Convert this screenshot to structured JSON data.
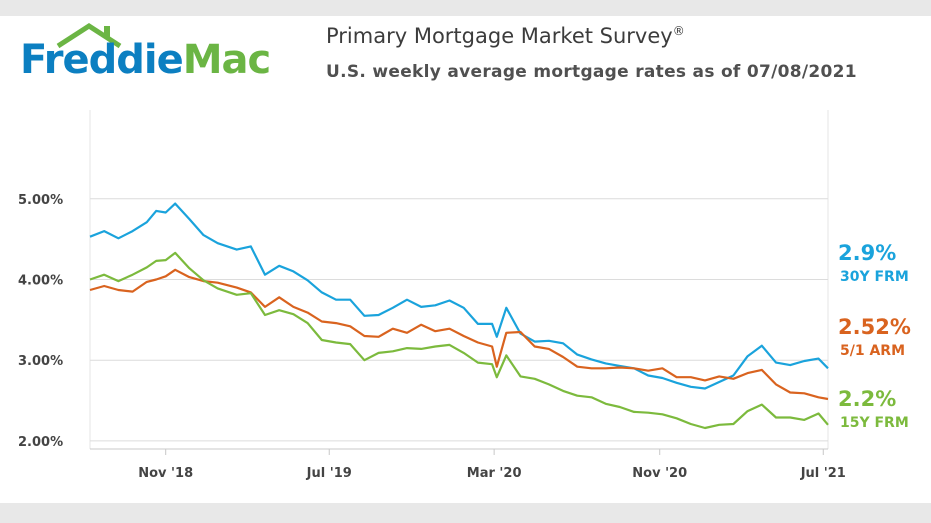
{
  "logo": {
    "word1": "Freddie",
    "word2": "Mac"
  },
  "header": {
    "title": "Primary Mortgage Market Survey",
    "title_mark": "®",
    "subtitle": "U.S. weekly average mortgage rates as of 07/08/2021"
  },
  "colors": {
    "brand_blue": "#0c7fc1",
    "brand_green": "#6bb544",
    "frm30": "#1aa3dc",
    "arm51": "#d9631f",
    "frm15": "#7cba3d",
    "grid": "#dcdcdc"
  },
  "chart_data": {
    "type": "line",
    "title": "Primary Mortgage Market Survey",
    "subtitle": "U.S. weekly average mortgage rates as of 07/08/2021",
    "x_range": [
      "2018-07-12",
      "2021-07-08"
    ],
    "x_ticks": [
      {
        "date": "2018-11-01",
        "label": "Nov '18"
      },
      {
        "date": "2019-07-01",
        "label": "Jul '19"
      },
      {
        "date": "2020-03-01",
        "label": "Mar '20"
      },
      {
        "date": "2020-11-01",
        "label": "Nov '20"
      },
      {
        "date": "2021-07-01",
        "label": "Jul '21"
      }
    ],
    "y_ticks": [
      {
        "value": 5.0,
        "label": "5.00%"
      },
      {
        "value": 4.0,
        "label": "4.00%"
      },
      {
        "value": 3.0,
        "label": "3.00%"
      },
      {
        "value": 2.0,
        "label": "2.00%"
      }
    ],
    "ylim": [
      1.9,
      6.1
    ],
    "grid": true,
    "series": [
      {
        "name": "30Y FRM",
        "end_label": "2.9%",
        "color": "#1aa3dc",
        "points": [
          [
            "2018-07-12",
            4.53
          ],
          [
            "2018-08-02",
            4.6
          ],
          [
            "2018-08-23",
            4.51
          ],
          [
            "2018-09-13",
            4.6
          ],
          [
            "2018-10-04",
            4.71
          ],
          [
            "2018-10-18",
            4.85
          ],
          [
            "2018-11-01",
            4.83
          ],
          [
            "2018-11-15",
            4.94
          ],
          [
            "2018-12-06",
            4.75
          ],
          [
            "2018-12-27",
            4.55
          ],
          [
            "2019-01-17",
            4.45
          ],
          [
            "2019-02-14",
            4.37
          ],
          [
            "2019-03-07",
            4.41
          ],
          [
            "2019-03-28",
            4.06
          ],
          [
            "2019-04-18",
            4.17
          ],
          [
            "2019-05-09",
            4.1
          ],
          [
            "2019-05-30",
            3.99
          ],
          [
            "2019-06-20",
            3.84
          ],
          [
            "2019-07-11",
            3.75
          ],
          [
            "2019-08-01",
            3.75
          ],
          [
            "2019-08-22",
            3.55
          ],
          [
            "2019-09-12",
            3.56
          ],
          [
            "2019-10-03",
            3.65
          ],
          [
            "2019-10-24",
            3.75
          ],
          [
            "2019-11-14",
            3.66
          ],
          [
            "2019-12-05",
            3.68
          ],
          [
            "2019-12-26",
            3.74
          ],
          [
            "2020-01-16",
            3.65
          ],
          [
            "2020-02-06",
            3.45
          ],
          [
            "2020-02-27",
            3.45
          ],
          [
            "2020-03-05",
            3.29
          ],
          [
            "2020-03-19",
            3.65
          ],
          [
            "2020-04-09",
            3.33
          ],
          [
            "2020-04-30",
            3.23
          ],
          [
            "2020-05-21",
            3.24
          ],
          [
            "2020-06-11",
            3.21
          ],
          [
            "2020-07-02",
            3.07
          ],
          [
            "2020-07-23",
            3.01
          ],
          [
            "2020-08-13",
            2.96
          ],
          [
            "2020-09-03",
            2.93
          ],
          [
            "2020-09-24",
            2.9
          ],
          [
            "2020-10-15",
            2.81
          ],
          [
            "2020-11-05",
            2.78
          ],
          [
            "2020-11-26",
            2.72
          ],
          [
            "2020-12-17",
            2.67
          ],
          [
            "2021-01-07",
            2.65
          ],
          [
            "2021-01-28",
            2.73
          ],
          [
            "2021-02-18",
            2.81
          ],
          [
            "2021-03-11",
            3.05
          ],
          [
            "2021-04-01",
            3.18
          ],
          [
            "2021-04-22",
            2.97
          ],
          [
            "2021-05-13",
            2.94
          ],
          [
            "2021-06-03",
            2.99
          ],
          [
            "2021-06-24",
            3.02
          ],
          [
            "2021-07-08",
            2.9
          ]
        ]
      },
      {
        "name": "5/1 ARM",
        "end_label": "2.52%",
        "color": "#d9631f",
        "points": [
          [
            "2018-07-12",
            3.87
          ],
          [
            "2018-08-02",
            3.92
          ],
          [
            "2018-08-23",
            3.87
          ],
          [
            "2018-09-13",
            3.85
          ],
          [
            "2018-10-04",
            3.97
          ],
          [
            "2018-10-18",
            4.0
          ],
          [
            "2018-11-01",
            4.04
          ],
          [
            "2018-11-15",
            4.12
          ],
          [
            "2018-12-06",
            4.03
          ],
          [
            "2018-12-27",
            3.98
          ],
          [
            "2019-01-17",
            3.96
          ],
          [
            "2019-02-14",
            3.9
          ],
          [
            "2019-03-07",
            3.84
          ],
          [
            "2019-03-28",
            3.66
          ],
          [
            "2019-04-18",
            3.78
          ],
          [
            "2019-05-09",
            3.66
          ],
          [
            "2019-05-30",
            3.59
          ],
          [
            "2019-06-20",
            3.48
          ],
          [
            "2019-07-11",
            3.46
          ],
          [
            "2019-08-01",
            3.42
          ],
          [
            "2019-08-22",
            3.3
          ],
          [
            "2019-09-12",
            3.29
          ],
          [
            "2019-10-03",
            3.39
          ],
          [
            "2019-10-24",
            3.34
          ],
          [
            "2019-11-14",
            3.44
          ],
          [
            "2019-12-05",
            3.36
          ],
          [
            "2019-12-26",
            3.39
          ],
          [
            "2020-01-16",
            3.3
          ],
          [
            "2020-02-06",
            3.22
          ],
          [
            "2020-02-27",
            3.17
          ],
          [
            "2020-03-05",
            2.92
          ],
          [
            "2020-03-19",
            3.34
          ],
          [
            "2020-04-09",
            3.35
          ],
          [
            "2020-04-30",
            3.17
          ],
          [
            "2020-05-21",
            3.14
          ],
          [
            "2020-06-11",
            3.04
          ],
          [
            "2020-07-02",
            2.92
          ],
          [
            "2020-07-23",
            2.9
          ],
          [
            "2020-08-13",
            2.9
          ],
          [
            "2020-09-03",
            2.91
          ],
          [
            "2020-09-24",
            2.9
          ],
          [
            "2020-10-15",
            2.87
          ],
          [
            "2020-11-05",
            2.9
          ],
          [
            "2020-11-26",
            2.79
          ],
          [
            "2020-12-17",
            2.79
          ],
          [
            "2021-01-07",
            2.75
          ],
          [
            "2021-01-28",
            2.8
          ],
          [
            "2021-02-18",
            2.77
          ],
          [
            "2021-03-11",
            2.84
          ],
          [
            "2021-04-01",
            2.88
          ],
          [
            "2021-04-22",
            2.7
          ],
          [
            "2021-05-13",
            2.6
          ],
          [
            "2021-06-03",
            2.59
          ],
          [
            "2021-06-24",
            2.54
          ],
          [
            "2021-07-08",
            2.52
          ]
        ]
      },
      {
        "name": "15Y FRM",
        "end_label": "2.2%",
        "color": "#7cba3d",
        "points": [
          [
            "2018-07-12",
            4.0
          ],
          [
            "2018-08-02",
            4.06
          ],
          [
            "2018-08-23",
            3.98
          ],
          [
            "2018-09-13",
            4.06
          ],
          [
            "2018-10-04",
            4.15
          ],
          [
            "2018-10-18",
            4.23
          ],
          [
            "2018-11-01",
            4.24
          ],
          [
            "2018-11-15",
            4.33
          ],
          [
            "2018-12-06",
            4.14
          ],
          [
            "2018-12-27",
            3.99
          ],
          [
            "2019-01-17",
            3.89
          ],
          [
            "2019-02-14",
            3.81
          ],
          [
            "2019-03-07",
            3.83
          ],
          [
            "2019-03-28",
            3.56
          ],
          [
            "2019-04-18",
            3.62
          ],
          [
            "2019-05-09",
            3.57
          ],
          [
            "2019-05-30",
            3.46
          ],
          [
            "2019-06-20",
            3.25
          ],
          [
            "2019-07-11",
            3.22
          ],
          [
            "2019-08-01",
            3.2
          ],
          [
            "2019-08-22",
            3.0
          ],
          [
            "2019-09-12",
            3.09
          ],
          [
            "2019-10-03",
            3.11
          ],
          [
            "2019-10-24",
            3.15
          ],
          [
            "2019-11-14",
            3.14
          ],
          [
            "2019-12-05",
            3.17
          ],
          [
            "2019-12-26",
            3.19
          ],
          [
            "2020-01-16",
            3.09
          ],
          [
            "2020-02-06",
            2.97
          ],
          [
            "2020-02-27",
            2.95
          ],
          [
            "2020-03-05",
            2.79
          ],
          [
            "2020-03-19",
            3.06
          ],
          [
            "2020-04-09",
            2.8
          ],
          [
            "2020-04-30",
            2.77
          ],
          [
            "2020-05-21",
            2.7
          ],
          [
            "2020-06-11",
            2.62
          ],
          [
            "2020-07-02",
            2.56
          ],
          [
            "2020-07-23",
            2.54
          ],
          [
            "2020-08-13",
            2.46
          ],
          [
            "2020-09-03",
            2.42
          ],
          [
            "2020-09-24",
            2.36
          ],
          [
            "2020-10-15",
            2.35
          ],
          [
            "2020-11-05",
            2.33
          ],
          [
            "2020-11-26",
            2.28
          ],
          [
            "2020-12-17",
            2.21
          ],
          [
            "2021-01-07",
            2.16
          ],
          [
            "2021-01-28",
            2.2
          ],
          [
            "2021-02-18",
            2.21
          ],
          [
            "2021-03-11",
            2.37
          ],
          [
            "2021-04-01",
            2.45
          ],
          [
            "2021-04-22",
            2.29
          ],
          [
            "2021-05-13",
            2.29
          ],
          [
            "2021-06-03",
            2.26
          ],
          [
            "2021-06-24",
            2.34
          ],
          [
            "2021-07-08",
            2.2
          ]
        ]
      }
    ]
  }
}
